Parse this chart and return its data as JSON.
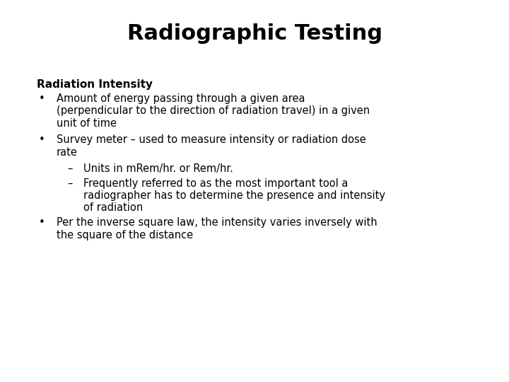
{
  "title": "Radiographic Testing",
  "background_color": "#ffffff",
  "text_color": "#000000",
  "title_fontsize": 22,
  "title_fontweight": "bold",
  "section_heading": "Radiation Intensity",
  "section_heading_fontsize": 11,
  "section_heading_fontweight": "bold",
  "body_fontsize": 10.5,
  "content": [
    {
      "type": "heading",
      "text": "Radiation Intensity"
    },
    {
      "type": "bullet1",
      "text": "Amount of energy passing through a given area\n(perpendicular to the direction of radiation travel) in a given\nunit of time"
    },
    {
      "type": "bullet1",
      "text": "Survey meter – used to measure intensity or radiation dose\nrate"
    },
    {
      "type": "bullet2",
      "text": "Units in mRem/hr. or Rem/hr."
    },
    {
      "type": "bullet2_multi",
      "text": "Frequently referred to as the most important tool a\nradiographer has to determine the presence and intensity\nof radiation"
    },
    {
      "type": "bullet1",
      "text": "Per the inverse square law, the intensity varies inversely with\nthe square of the distance"
    }
  ]
}
